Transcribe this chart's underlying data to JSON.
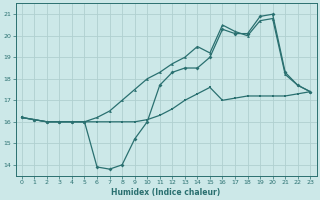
{
  "xlabel": "Humidex (Indice chaleur)",
  "xlim": [
    -0.5,
    23.5
  ],
  "ylim": [
    13.5,
    21.5
  ],
  "yticks": [
    14,
    15,
    16,
    17,
    18,
    19,
    20,
    21
  ],
  "xticks": [
    0,
    1,
    2,
    3,
    4,
    5,
    6,
    7,
    8,
    9,
    10,
    11,
    12,
    13,
    14,
    15,
    16,
    17,
    18,
    19,
    20,
    21,
    22,
    23
  ],
  "bg_color": "#cce8e8",
  "grid_color": "#b0d0d0",
  "line_color": "#2a7070",
  "line1_x": [
    0,
    1,
    2,
    3,
    4,
    5,
    6,
    7,
    8,
    9,
    10,
    11,
    12,
    13,
    14,
    15,
    16,
    17,
    18,
    19,
    20,
    21,
    22,
    23
  ],
  "line1_y": [
    16.2,
    16.1,
    16.0,
    16.0,
    16.0,
    16.0,
    16.0,
    16.0,
    16.0,
    16.0,
    16.1,
    16.3,
    16.6,
    17.0,
    17.3,
    17.6,
    17.0,
    17.1,
    17.2,
    17.2,
    17.2,
    17.2,
    17.3,
    17.4
  ],
  "line2_x": [
    0,
    1,
    2,
    3,
    4,
    5,
    6,
    7,
    8,
    9,
    10,
    11,
    12,
    13,
    14,
    15,
    16,
    17,
    18,
    19,
    20,
    21,
    22,
    23
  ],
  "line2_y": [
    16.2,
    16.1,
    16.0,
    16.0,
    16.0,
    16.0,
    13.9,
    13.8,
    14.0,
    15.2,
    16.0,
    17.7,
    18.3,
    18.5,
    18.5,
    19.0,
    20.3,
    20.1,
    20.1,
    20.9,
    21.0,
    18.3,
    17.7,
    17.4
  ],
  "line3_x": [
    0,
    1,
    2,
    3,
    4,
    5,
    6,
    7,
    8,
    9,
    10,
    11,
    12,
    13,
    14,
    15,
    16,
    17,
    18,
    19,
    20,
    21,
    22,
    23
  ],
  "line3_y": [
    16.2,
    16.1,
    16.0,
    16.0,
    16.0,
    16.0,
    16.2,
    16.5,
    17.0,
    17.5,
    18.0,
    18.3,
    18.7,
    19.0,
    19.5,
    19.2,
    20.5,
    20.2,
    20.0,
    20.7,
    20.8,
    18.2,
    17.7,
    17.4
  ]
}
